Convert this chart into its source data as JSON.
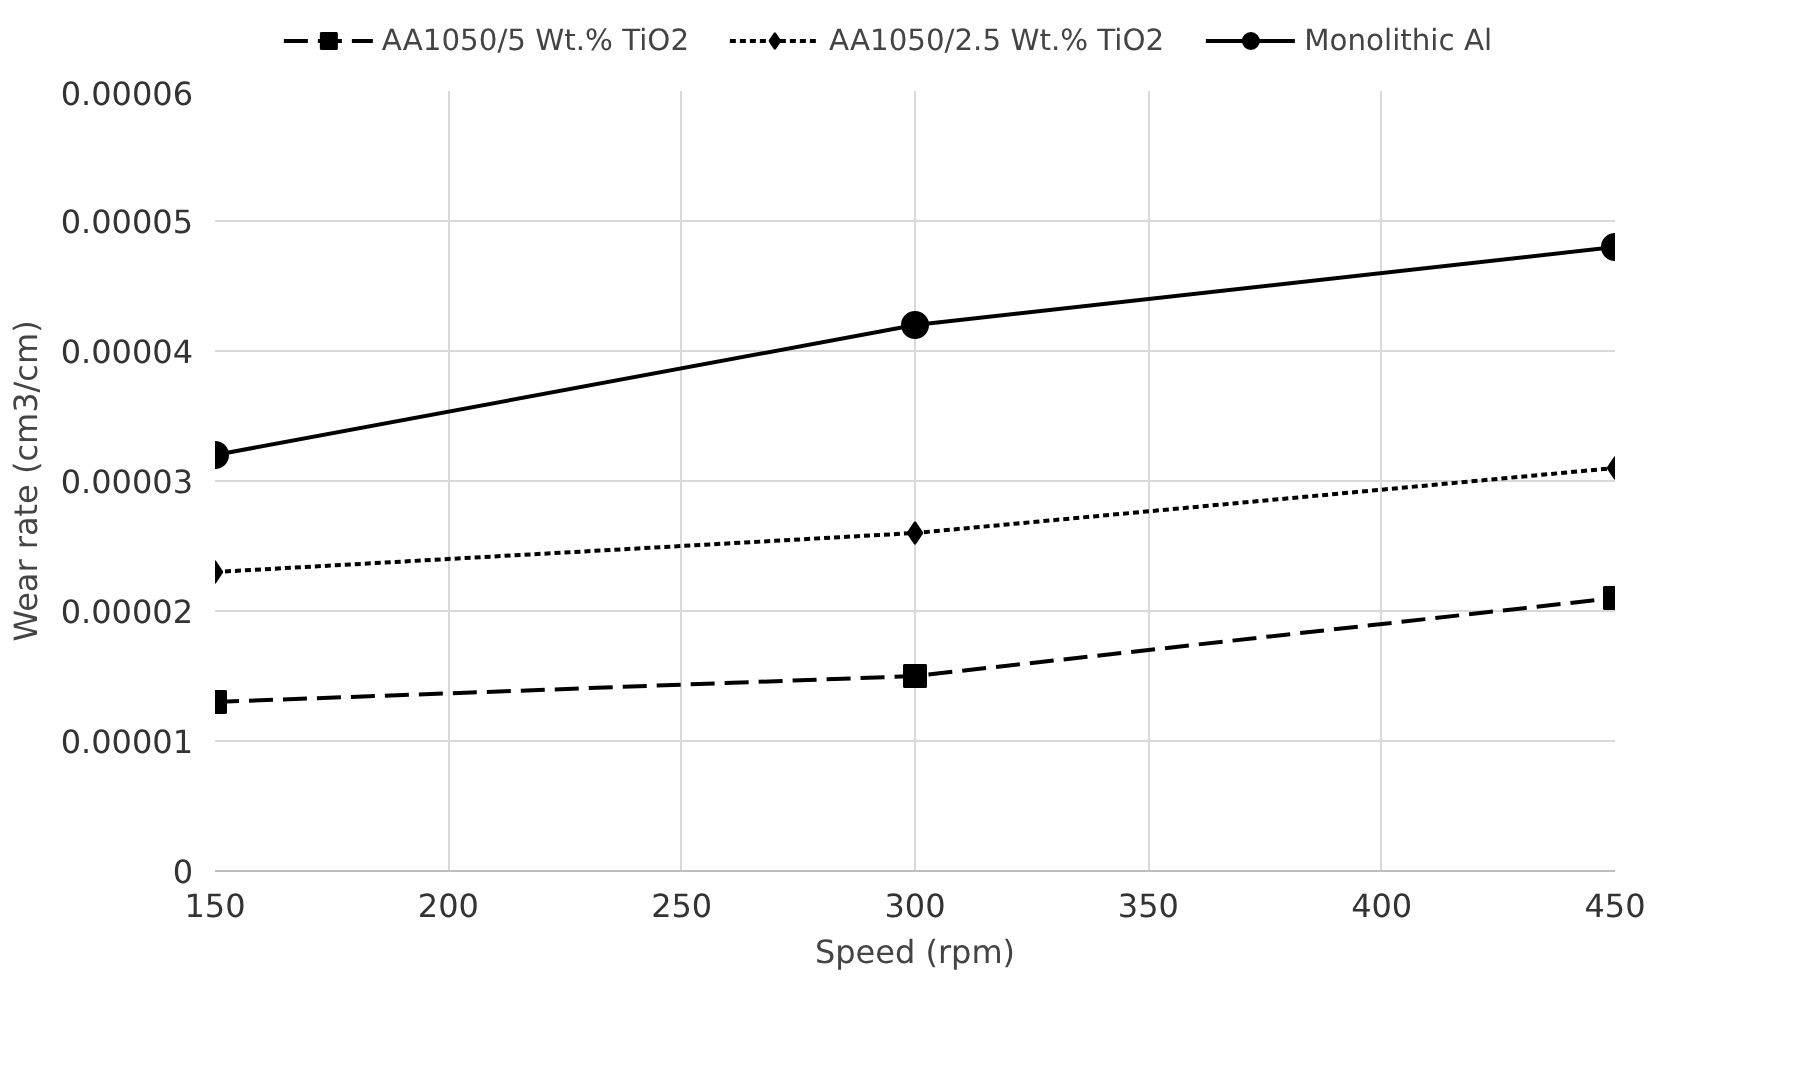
{
  "chart_data": {
    "type": "line",
    "xlabel": "Speed (rpm)",
    "ylabel": "Wear rate (cm3/cm)",
    "x": [
      150,
      300,
      450
    ],
    "series": [
      {
        "name": "AA1050/5 Wt.% TiO2",
        "color": "#000000",
        "marker": "square",
        "line_style": "dashed",
        "values": [
          1.3e-05,
          1.5e-05,
          2.1e-05
        ]
      },
      {
        "name": "AA1050/2.5 Wt.% TiO2",
        "color": "#000000",
        "marker": "diamond",
        "line_style": "dotted",
        "values": [
          2.3e-05,
          2.6e-05,
          3.1e-05
        ]
      },
      {
        "name": "Monolithic Al",
        "color": "#000000",
        "marker": "circle",
        "line_style": "solid",
        "values": [
          3.2e-05,
          4.2e-05,
          4.8e-05
        ]
      }
    ],
    "xlim": [
      150,
      450
    ],
    "xticks": [
      150,
      200,
      250,
      300,
      350,
      400,
      450
    ],
    "ylim": [
      0,
      6e-05
    ],
    "yticks": [
      0,
      {
        "value": 1e-05,
        "label": "0.00001"
      },
      {
        "value": 2e-05,
        "label": "0.00002"
      },
      {
        "value": 3e-05,
        "label": "0.00003"
      },
      {
        "value": 4e-05,
        "label": "0.00004"
      },
      {
        "value": 5e-05,
        "label": "0.00005"
      },
      {
        "value": 6e-05,
        "label": "0.00006"
      }
    ],
    "grid": true,
    "legend": "top"
  }
}
